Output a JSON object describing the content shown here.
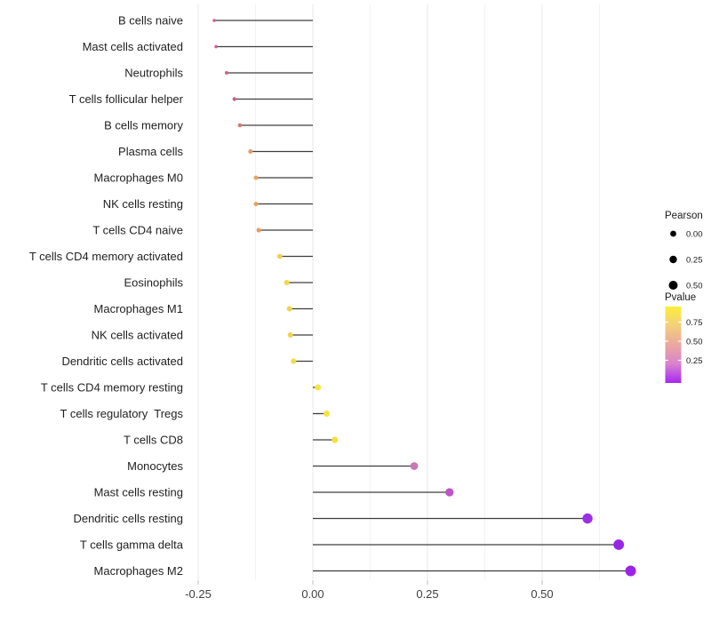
{
  "figure": {
    "background": "#ffffff",
    "axis_text_color": "#404040",
    "category_text_color": "#1f1f1f"
  },
  "chart_data": {
    "type": "lollipop",
    "orientation": "horizontal",
    "title": "",
    "xlabel": "",
    "ylabel": "",
    "xlim": [
      -0.27,
      0.72
    ],
    "baseline": 0,
    "grid": "vertical only, light gray, major and minor",
    "x_major_ticks": [
      -0.25,
      0,
      0.25,
      0.5
    ],
    "x_major_tick_labels": [
      "-0.25",
      "0.00",
      "0.25",
      "0.50"
    ],
    "x_minor_ticks": [
      -0.125,
      0.125,
      0.375,
      0.625
    ],
    "categories": [
      "B cells naive",
      "Mast cells activated",
      "Neutrophils",
      "T cells follicular helper",
      "B cells memory",
      "Plasma cells",
      "Macrophages M0",
      "NK cells resting",
      "T cells CD4 naive",
      "T cells CD4 memory activated",
      "Eosinophils",
      "Macrophages M1",
      "NK cells activated",
      "Dendritic cells activated",
      "T cells CD4 memory resting",
      "T cells regulatory  Tregs",
      "T cells CD8",
      "Monocytes",
      "Mast cells resting",
      "Dendritic cells resting",
      "T cells gamma delta",
      "Macrophages M2"
    ],
    "series": [
      {
        "name": "Pearson",
        "values": [
          -0.215,
          -0.211,
          -0.188,
          -0.171,
          -0.159,
          -0.136,
          -0.124,
          -0.124,
          -0.118,
          -0.072,
          -0.057,
          -0.051,
          -0.049,
          -0.042,
          0.011,
          0.03,
          0.048,
          0.221,
          0.298,
          0.599,
          0.667,
          0.693
        ]
      }
    ],
    "point_colors": [
      "#C9609A",
      "#C9609A",
      "#CD6489",
      "#CB6380",
      "#D4776F",
      "#E39A69",
      "#E8A361",
      "#E8A361",
      "#E69E66",
      "#EFD04F",
      "#F1D74B",
      "#EFD34D",
      "#EFD34D",
      "#F0DB49",
      "#F5E43C",
      "#F5E43C",
      "#F4E03F",
      "#C878B4",
      "#BC54C6",
      "#9C2FE3",
      "#9826E6",
      "#9C23E9"
    ],
    "stick_color": "#3d3d3d",
    "legend": {
      "position": "right",
      "size_legend": {
        "title": "Pearson",
        "labels": [
          "0.00",
          "0.25",
          "0.50"
        ],
        "values": [
          0,
          0.25,
          0.5
        ],
        "dot_color": "#000000"
      },
      "color_legend": {
        "title": "Pvalue",
        "tick_labels": [
          "0.75",
          "0.50",
          "0.25"
        ],
        "tick_values": [
          0.75,
          0.5,
          0.25
        ],
        "gradient_top_to_bottom": [
          "#FBEE3A",
          "#F3CF7B",
          "#EAA79F",
          "#D983CD",
          "#A727F4"
        ]
      }
    }
  }
}
